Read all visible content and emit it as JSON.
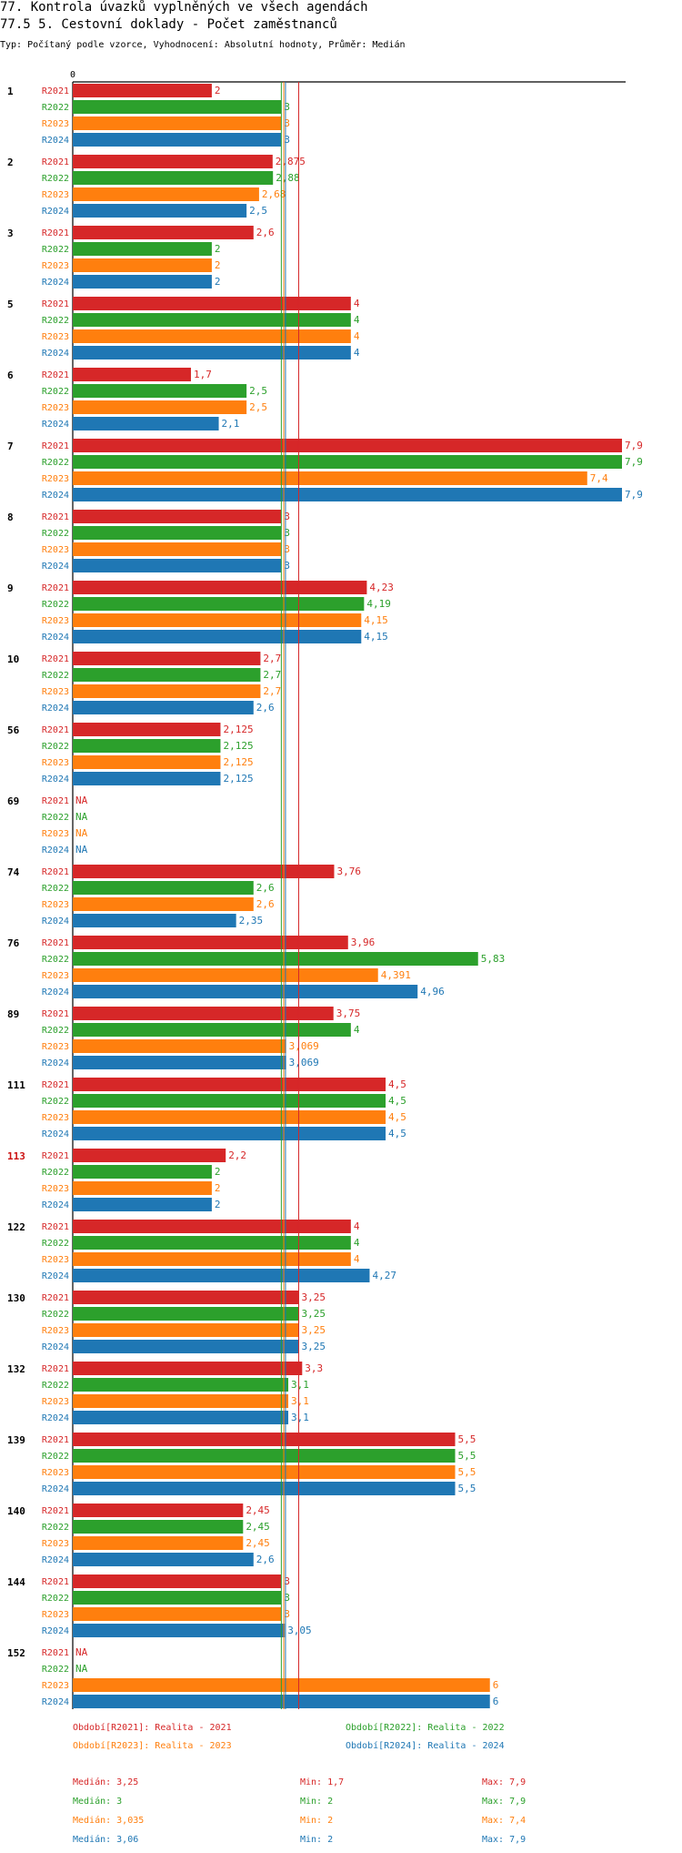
{
  "chart_data": {
    "type": "bar",
    "orientation": "horizontal",
    "title": "77. Kontrola úvazků vyplněných ve všech agendách",
    "subtitle": "77.5 5. Cestovní doklady  - Počet zaměstnanců",
    "description": "Typ: Počítaný podle vzorce, Vyhodnocení: Absolutní hodnoty, Průměr: Medián",
    "x_tick_label": "0",
    "xlim": [
      0,
      7.9
    ],
    "series": [
      {
        "name": "R2021",
        "color": "#d62728"
      },
      {
        "name": "R2022",
        "color": "#2ca02c"
      },
      {
        "name": "R2023",
        "color": "#ff7f0e"
      },
      {
        "name": "R2024",
        "color": "#1f77b4"
      }
    ],
    "groups": [
      {
        "label": "1",
        "highlight": false,
        "values": [
          2,
          3,
          3,
          3
        ],
        "labels": [
          "2",
          "3",
          "3",
          "3"
        ]
      },
      {
        "label": "2",
        "highlight": false,
        "values": [
          2.875,
          2.88,
          2.68,
          2.5
        ],
        "labels": [
          "2,875",
          "2,88",
          "2,68",
          "2,5"
        ]
      },
      {
        "label": "3",
        "highlight": false,
        "values": [
          2.6,
          2,
          2,
          2
        ],
        "labels": [
          "2,6",
          "2",
          "2",
          "2"
        ]
      },
      {
        "label": "5",
        "highlight": false,
        "values": [
          4,
          4,
          4,
          4
        ],
        "labels": [
          "4",
          "4",
          "4",
          "4"
        ]
      },
      {
        "label": "6",
        "highlight": false,
        "values": [
          1.7,
          2.5,
          2.5,
          2.1
        ],
        "labels": [
          "1,7",
          "2,5",
          "2,5",
          "2,1"
        ]
      },
      {
        "label": "7",
        "highlight": false,
        "values": [
          7.9,
          7.9,
          7.4,
          7.9
        ],
        "labels": [
          "7,9",
          "7,9",
          "7,4",
          "7,9"
        ]
      },
      {
        "label": "8",
        "highlight": false,
        "values": [
          3,
          3,
          3,
          3
        ],
        "labels": [
          "3",
          "3",
          "3",
          "3"
        ]
      },
      {
        "label": "9",
        "highlight": false,
        "values": [
          4.23,
          4.19,
          4.15,
          4.15
        ],
        "labels": [
          "4,23",
          "4,19",
          "4,15",
          "4,15"
        ]
      },
      {
        "label": "10",
        "highlight": false,
        "values": [
          2.7,
          2.7,
          2.7,
          2.6
        ],
        "labels": [
          "2,7",
          "2,7",
          "2,7",
          "2,6"
        ]
      },
      {
        "label": "56",
        "highlight": false,
        "values": [
          2.125,
          2.125,
          2.125,
          2.125
        ],
        "labels": [
          "2,125",
          "2,125",
          "2,125",
          "2,125"
        ]
      },
      {
        "label": "69",
        "highlight": false,
        "values": [
          null,
          null,
          null,
          null
        ],
        "labels": [
          "NA",
          "NA",
          "NA",
          "NA"
        ]
      },
      {
        "label": "74",
        "highlight": false,
        "values": [
          3.76,
          2.6,
          2.6,
          2.35
        ],
        "labels": [
          "3,76",
          "2,6",
          "2,6",
          "2,35"
        ]
      },
      {
        "label": "76",
        "highlight": false,
        "values": [
          3.96,
          5.83,
          4.391,
          4.96
        ],
        "labels": [
          "3,96",
          "5,83",
          "4,391",
          "4,96"
        ]
      },
      {
        "label": "89",
        "highlight": false,
        "values": [
          3.75,
          4,
          3.069,
          3.069
        ],
        "labels": [
          "3,75",
          "4",
          "3,069",
          "3,069"
        ]
      },
      {
        "label": "111",
        "highlight": false,
        "values": [
          4.5,
          4.5,
          4.5,
          4.5
        ],
        "labels": [
          "4,5",
          "4,5",
          "4,5",
          "4,5"
        ]
      },
      {
        "label": "113",
        "highlight": true,
        "values": [
          2.2,
          2,
          2,
          2
        ],
        "labels": [
          "2,2",
          "2",
          "2",
          "2"
        ]
      },
      {
        "label": "122",
        "highlight": false,
        "values": [
          4,
          4,
          4,
          4.27
        ],
        "labels": [
          "4",
          "4",
          "4",
          "4,27"
        ]
      },
      {
        "label": "130",
        "highlight": false,
        "values": [
          3.25,
          3.25,
          3.25,
          3.25
        ],
        "labels": [
          "3,25",
          "3,25",
          "3,25",
          "3,25"
        ]
      },
      {
        "label": "132",
        "highlight": false,
        "values": [
          3.3,
          3.1,
          3.1,
          3.1
        ],
        "labels": [
          "3,3",
          "3,1",
          "3,1",
          "3,1"
        ]
      },
      {
        "label": "139",
        "highlight": false,
        "values": [
          5.5,
          5.5,
          5.5,
          5.5
        ],
        "labels": [
          "5,5",
          "5,5",
          "5,5",
          "5,5"
        ]
      },
      {
        "label": "140",
        "highlight": false,
        "values": [
          2.45,
          2.45,
          2.45,
          2.6
        ],
        "labels": [
          "2,45",
          "2,45",
          "2,45",
          "2,6"
        ]
      },
      {
        "label": "144",
        "highlight": false,
        "values": [
          3,
          3,
          3,
          3.05
        ],
        "labels": [
          "3",
          "3",
          "3",
          "3,05"
        ]
      },
      {
        "label": "152",
        "highlight": false,
        "values": [
          null,
          null,
          6,
          6
        ],
        "labels": [
          "NA",
          "NA",
          "6",
          "6"
        ]
      }
    ],
    "median_lines": [
      3.25,
      3,
      3.035,
      3.06
    ],
    "legend": [
      "Období[R2021]: Realita - 2021",
      "Období[R2022]: Realita - 2022",
      "Období[R2023]: Realita - 2023",
      "Období[R2024]: Realita - 2024"
    ],
    "stats": [
      {
        "median": "Medián: 3,25",
        "min": "Min: 1,7",
        "max": "Max: 7,9"
      },
      {
        "median": "Medián: 3",
        "min": "Min: 2",
        "max": "Max: 7,9"
      },
      {
        "median": "Medián: 3,035",
        "min": "Min: 2",
        "max": "Max: 7,4"
      },
      {
        "median": "Medián: 3,06",
        "min": "Min: 2",
        "max": "Max: 7,9"
      }
    ]
  }
}
